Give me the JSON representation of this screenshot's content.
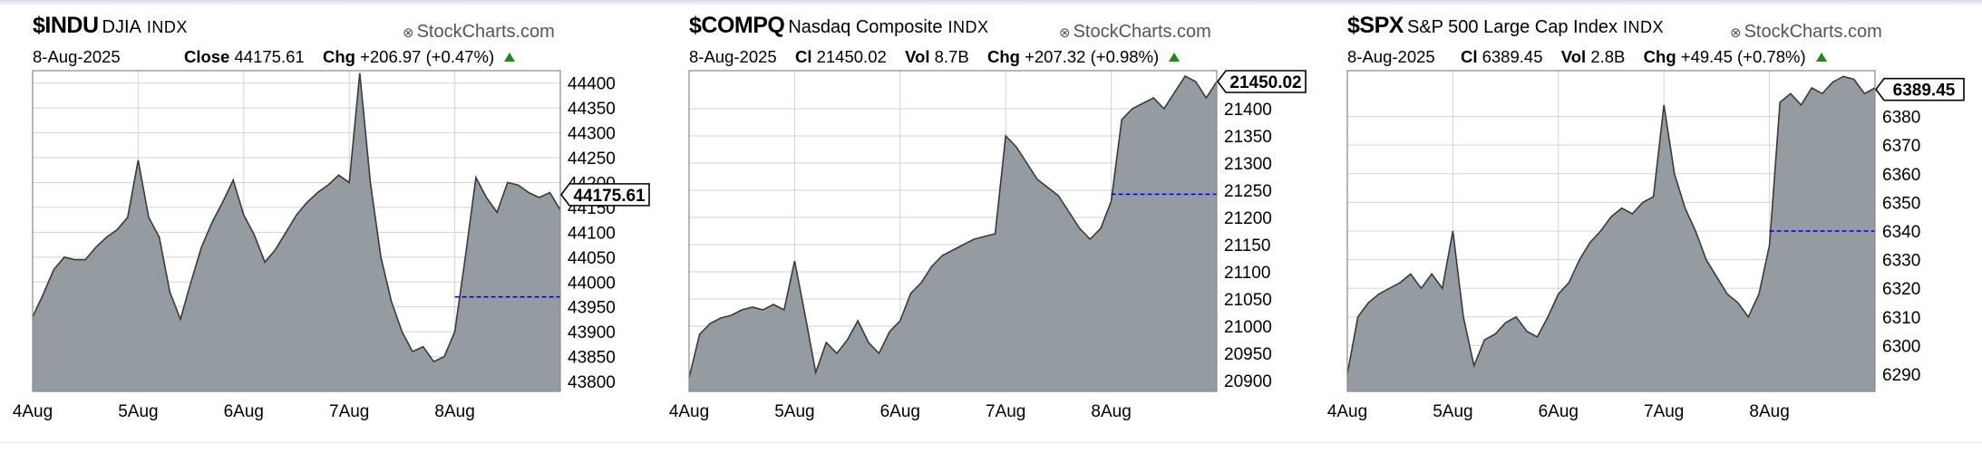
{
  "colors": {
    "area_fill": "#949ba1",
    "line": "#3a3a3a",
    "grid": "#d3d3d3",
    "prev_close": "#0000ee",
    "up": "#1e8a1e"
  },
  "chart_data": [
    {
      "type": "area",
      "symbol": "$INDU",
      "name": "DJIA",
      "exchange": "INDX",
      "watermark": "StockCharts.com",
      "date": "8-Aug-2025",
      "close_label": "Close",
      "close": "44175.61",
      "chg_label": "Chg",
      "chg": "+206.97 (+0.47%)",
      "last_value_tag": "44175.61",
      "x_labels": [
        "4Aug",
        "5Aug",
        "6Aug",
        "7Aug",
        "8Aug"
      ],
      "y_ticks": [
        43800,
        43850,
        43900,
        43950,
        44000,
        44050,
        44100,
        44150,
        44200,
        44250,
        44300,
        44350,
        44400
      ],
      "ylim": [
        43780,
        44425
      ],
      "last_value": 44175.61,
      "prev_close": 43970,
      "grid": true,
      "x": [
        0.0,
        0.1,
        0.2,
        0.3,
        0.4,
        0.5,
        0.6,
        0.7,
        0.8,
        0.9,
        1.0,
        1.1,
        1.2,
        1.3,
        1.4,
        1.5,
        1.6,
        1.7,
        1.8,
        1.9,
        2.0,
        2.1,
        2.2,
        2.3,
        2.4,
        2.5,
        2.6,
        2.7,
        2.8,
        2.9,
        3.0,
        3.1,
        3.2,
        3.3,
        3.4,
        3.5,
        3.6,
        3.7,
        3.8,
        3.9,
        4.0,
        4.1,
        4.2,
        4.3,
        4.4,
        4.5,
        4.6,
        4.7,
        4.8,
        4.9,
        5.0
      ],
      "values": [
        43930,
        43975,
        44025,
        44050,
        44045,
        44045,
        44070,
        44090,
        44105,
        44130,
        44245,
        44130,
        44090,
        43980,
        43925,
        44000,
        44070,
        44120,
        44160,
        44205,
        44135,
        44095,
        44040,
        44065,
        44100,
        44135,
        44160,
        44180,
        44195,
        44215,
        44200,
        44420,
        44200,
        44050,
        43960,
        43900,
        43860,
        43870,
        43840,
        43850,
        43900,
        44050,
        44210,
        44170,
        44140,
        44200,
        44195,
        44180,
        44170,
        44180,
        44145
      ]
    },
    {
      "type": "area",
      "symbol": "$COMPQ",
      "name": "Nasdaq Composite",
      "exchange": "INDX",
      "watermark": "StockCharts.com",
      "date": "8-Aug-2025",
      "cl_label": "Cl",
      "cl": "21450.02",
      "vol_label": "Vol",
      "vol": "8.7B",
      "chg_label": "Chg",
      "chg": "+207.32 (+0.98%)",
      "last_value_tag": "21450.02",
      "x_labels": [
        "4Aug",
        "5Aug",
        "6Aug",
        "7Aug",
        "8Aug"
      ],
      "y_ticks": [
        20900,
        20950,
        21000,
        21050,
        21100,
        21150,
        21200,
        21250,
        21300,
        21350,
        21400
      ],
      "ylim": [
        20880,
        21470
      ],
      "last_value": 21450.02,
      "prev_close": 21242.7,
      "grid": true,
      "x": [
        0.0,
        0.1,
        0.2,
        0.3,
        0.4,
        0.5,
        0.6,
        0.7,
        0.8,
        0.9,
        1.0,
        1.1,
        1.2,
        1.3,
        1.4,
        1.5,
        1.6,
        1.7,
        1.8,
        1.9,
        2.0,
        2.1,
        2.2,
        2.3,
        2.4,
        2.5,
        2.6,
        2.7,
        2.8,
        2.9,
        3.0,
        3.1,
        3.2,
        3.3,
        3.4,
        3.5,
        3.6,
        3.7,
        3.8,
        3.9,
        4.0,
        4.1,
        4.2,
        4.3,
        4.4,
        4.5,
        4.6,
        4.7,
        4.8,
        4.9,
        5.0
      ],
      "values": [
        20905,
        20985,
        21005,
        21015,
        21020,
        21030,
        21035,
        21030,
        21040,
        21030,
        21120,
        21020,
        20915,
        20970,
        20950,
        20975,
        21010,
        20970,
        20950,
        20990,
        21010,
        21060,
        21080,
        21110,
        21130,
        21140,
        21150,
        21160,
        21165,
        21170,
        21350,
        21330,
        21300,
        21270,
        21255,
        21240,
        21210,
        21180,
        21160,
        21180,
        21230,
        21380,
        21400,
        21410,
        21420,
        21400,
        21430,
        21460,
        21450,
        21420,
        21450
      ]
    },
    {
      "type": "area",
      "symbol": "$SPX",
      "name": "S&P 500 Large Cap Index",
      "exchange": "INDX",
      "watermark": "StockCharts.com",
      "date": "8-Aug-2025",
      "cl_label": "Cl",
      "cl": "6389.45",
      "vol_label": "Vol",
      "vol": "2.8B",
      "chg_label": "Chg",
      "chg": "+49.45 (+0.78%)",
      "last_value_tag": "6389.45",
      "x_labels": [
        "4Aug",
        "5Aug",
        "6Aug",
        "7Aug",
        "8Aug"
      ],
      "y_ticks": [
        6290,
        6300,
        6310,
        6320,
        6330,
        6340,
        6350,
        6360,
        6370,
        6380
      ],
      "ylim": [
        6284,
        6396
      ],
      "last_value": 6389.45,
      "prev_close": 6340,
      "grid": true,
      "x": [
        0.0,
        0.1,
        0.2,
        0.3,
        0.4,
        0.5,
        0.6,
        0.7,
        0.8,
        0.9,
        1.0,
        1.1,
        1.2,
        1.3,
        1.4,
        1.5,
        1.6,
        1.7,
        1.8,
        1.9,
        2.0,
        2.1,
        2.2,
        2.3,
        2.4,
        2.5,
        2.6,
        2.7,
        2.8,
        2.9,
        3.0,
        3.1,
        3.2,
        3.3,
        3.4,
        3.5,
        3.6,
        3.7,
        3.8,
        3.9,
        4.0,
        4.1,
        4.2,
        4.3,
        4.4,
        4.5,
        4.6,
        4.7,
        4.8,
        4.9,
        5.0
      ],
      "values": [
        6290,
        6310,
        6315,
        6318,
        6320,
        6322,
        6325,
        6320,
        6325,
        6320,
        6340,
        6310,
        6293,
        6302,
        6304,
        6308,
        6310,
        6305,
        6303,
        6310,
        6318,
        6322,
        6330,
        6336,
        6340,
        6345,
        6348,
        6346,
        6350,
        6352,
        6384,
        6360,
        6348,
        6340,
        6330,
        6324,
        6318,
        6315,
        6310,
        6318,
        6335,
        6385,
        6388,
        6384,
        6390,
        6388,
        6392,
        6394,
        6393,
        6388,
        6390
      ]
    }
  ]
}
